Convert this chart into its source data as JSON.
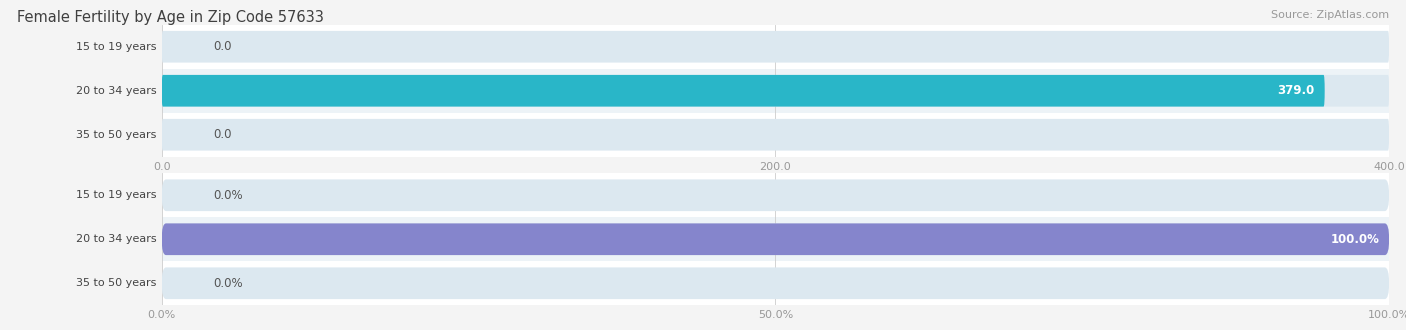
{
  "title": "Female Fertility by Age in Zip Code 57633",
  "source": "Source: ZipAtlas.com",
  "categories": [
    "15 to 19 years",
    "20 to 34 years",
    "35 to 50 years"
  ],
  "values_count": [
    0.0,
    379.0,
    0.0
  ],
  "values_pct": [
    0.0,
    100.0,
    0.0
  ],
  "xlim_count": [
    0,
    400
  ],
  "xlim_pct": [
    0,
    100
  ],
  "xticks_count": [
    0.0,
    200.0,
    400.0
  ],
  "xticks_pct": [
    0.0,
    50.0,
    100.0
  ],
  "xtick_labels_count": [
    "0.0",
    "200.0",
    "400.0"
  ],
  "xtick_labels_pct": [
    "0.0%",
    "50.0%",
    "100.0%"
  ],
  "bar_color_count": "#29b6c8",
  "bar_color_pct": "#8585cc",
  "bar_bg_color": "#dce8f0",
  "bar_height": 0.72,
  "title_color": "#404040",
  "title_fontsize": 10.5,
  "source_color": "#999999",
  "source_fontsize": 8,
  "label_color_inside": "#ffffff",
  "label_color_outside": "#555555",
  "label_fontsize": 8.5,
  "ylabel_fontsize": 8,
  "ylabel_color": "#444444",
  "tick_fontsize": 8,
  "tick_color": "#999999",
  "grid_color": "#cccccc",
  "background_color": "#f4f4f4",
  "axes_bg_color": "#f4f4f4",
  "row_bg_colors": [
    "#ffffff",
    "#f0f4f8",
    "#ffffff"
  ]
}
